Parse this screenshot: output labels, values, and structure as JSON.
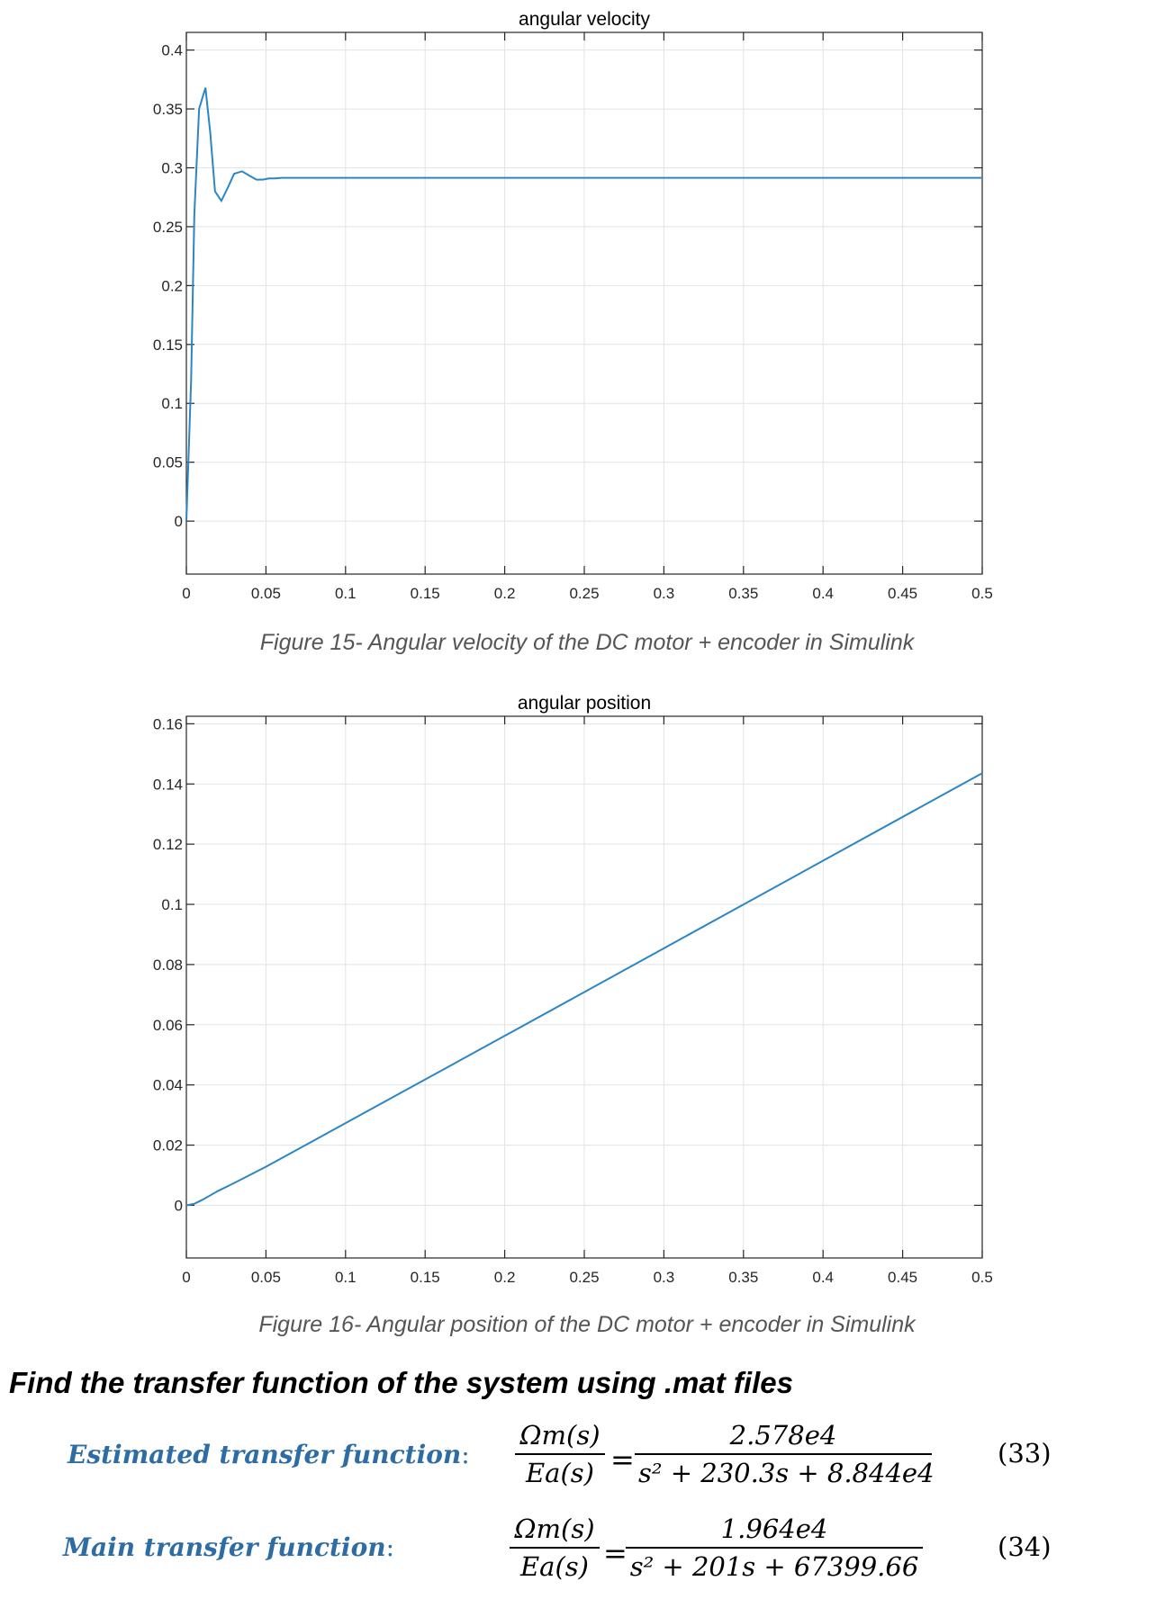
{
  "chart_data": [
    {
      "type": "line",
      "title": "angular velocity",
      "xlabel": "",
      "ylabel": "",
      "xlim": [
        0,
        0.5
      ],
      "ylim": [
        -0.045,
        0.415
      ],
      "xticks": [
        "0",
        "0.05",
        "0.1",
        "0.15",
        "0.2",
        "0.25",
        "0.3",
        "0.35",
        "0.4",
        "0.45",
        "0.5"
      ],
      "yticks": [
        "0",
        "0.05",
        "0.1",
        "0.15",
        "0.2",
        "0.25",
        "0.3",
        "0.35",
        "0.4"
      ],
      "grid": true,
      "line_color": "#2b86c4",
      "series": [
        {
          "x": [
            0,
            0.003,
            0.005,
            0.008,
            0.012,
            0.015,
            0.018,
            0.022,
            0.026,
            0.03,
            0.035,
            0.04,
            0.044,
            0.048,
            0.052,
            0.056,
            0.06,
            0.065,
            0.07,
            0.08,
            0.1,
            0.2,
            0.3,
            0.4,
            0.5
          ],
          "y": [
            0,
            0.12,
            0.26,
            0.35,
            0.368,
            0.33,
            0.28,
            0.272,
            0.283,
            0.295,
            0.297,
            0.293,
            0.29,
            0.29,
            0.291,
            0.291,
            0.2915,
            0.2915,
            0.2915,
            0.2915,
            0.2915,
            0.2915,
            0.2915,
            0.2915,
            0.2915
          ]
        }
      ]
    },
    {
      "type": "line",
      "title": "angular position",
      "xlabel": "",
      "ylabel": "",
      "xlim": [
        0,
        0.5
      ],
      "ylim": [
        -0.0175,
        0.1625
      ],
      "xticks": [
        "0",
        "0.05",
        "0.1",
        "0.15",
        "0.2",
        "0.25",
        "0.3",
        "0.35",
        "0.4",
        "0.45",
        "0.5"
      ],
      "yticks": [
        "0",
        "0.02",
        "0.04",
        "0.06",
        "0.08",
        "0.1",
        "0.12",
        "0.14",
        "0.16"
      ],
      "grid": true,
      "line_color": "#2b86c4",
      "series": [
        {
          "x": [
            0,
            0.005,
            0.01,
            0.015,
            0.02,
            0.03,
            0.05,
            0.1,
            0.2,
            0.3,
            0.4,
            0.5
          ],
          "y": [
            0,
            0.0005,
            0.0018,
            0.0033,
            0.0048,
            0.0074,
            0.0128,
            0.0273,
            0.0563,
            0.0854,
            0.1145,
            0.1436
          ]
        }
      ]
    }
  ],
  "captions": {
    "fig15": "Figure 15- Angular velocity of the DC motor + encoder in Simulink",
    "fig16": "Figure 16- Angular position of the DC motor + encoder in Simulink"
  },
  "heading": "Find the transfer function of the system using .mat files",
  "equations": {
    "estimated": {
      "label": "Estimated transfer function",
      "colon": ":",
      "lhs_num": "Ωm(s)",
      "lhs_den": "Ea(s)",
      "equals": "=",
      "rhs_num": "2.578e4",
      "rhs_den": "s² + 230.3s + 8.844e4",
      "number": "(33)"
    },
    "main": {
      "label": "Main transfer function",
      "colon": ":",
      "lhs_num": "Ωm(s)",
      "lhs_den": "Ea(s)",
      "equals": "=",
      "rhs_num": "1.964e4",
      "rhs_den": "s² + 201s + 67399.66",
      "number": "(34)"
    }
  }
}
